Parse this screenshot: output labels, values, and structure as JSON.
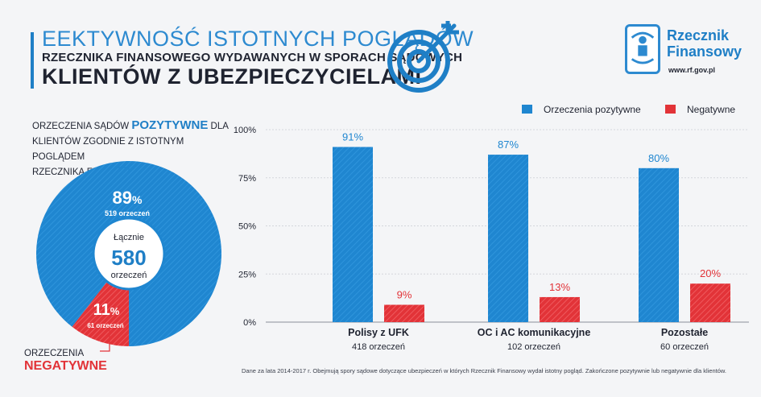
{
  "header": {
    "title_line1": "EEKTYWNOŚĆ ISTOTNYCH POGLĄDÓW",
    "title_line2": "RZECZNIKA FINANSOWEGO WYDAWANYCH W SPORACH SĄDOWYCH",
    "title_line3": "KLIENTÓW Z UBEZPIECZYCIELAMI"
  },
  "logo": {
    "name_line1": "Rzecznik",
    "name_line2": "Finansowy",
    "url": "www.rf.gov.pl",
    "icon": "ombudsman-logo-icon"
  },
  "donut": {
    "caption_line1_pre": "ORZECZENIA SĄDÓW ",
    "caption_highlight": "POZYTYWNE",
    "caption_line1_post": " DLA",
    "caption_line2": "KLIENTÓW ZGODNIE Z ISTOTNYM POGLĄDEM",
    "caption_line3": "RZECZNIKA FINANSOWEGO",
    "total_label": "Łącznie",
    "total_value": "580",
    "total_unit": "orzeczeń",
    "positive_pct": "89",
    "positive_pct_sign": "%",
    "positive_count": "519 orzeczeń",
    "negative_pct": "11",
    "negative_pct_sign": "%",
    "negative_count": "61 orzeczeń",
    "neg_caption_line1": "ORZECZENIA",
    "neg_caption_highlight": "NEGATYWNE",
    "positive_fraction": 0.895
  },
  "colors": {
    "positive": "#1f86d0",
    "negative": "#e23338",
    "title_blue": "#2d8ad0"
  },
  "chart_data": {
    "type": "bar",
    "categories": [
      "Polisy z UFK",
      "OC i AC komunikacyjne",
      "Pozostałe"
    ],
    "category_counts": [
      "418 orzeczeń",
      "102 orzeczeń",
      "60 orzeczeń"
    ],
    "series": [
      {
        "name": "Orzeczenia pozytywne",
        "values": [
          91,
          87,
          80
        ],
        "labels": [
          "91%",
          "87%",
          "80%"
        ]
      },
      {
        "name": "Negatywne",
        "values": [
          9,
          13,
          20
        ],
        "labels": [
          "9%",
          "13%",
          "20%"
        ]
      }
    ],
    "yticks": [
      "100%",
      "75%",
      "50%",
      "25%",
      "0%"
    ],
    "ylim": [
      0,
      100
    ],
    "legend_position": "top-right",
    "grid": true
  },
  "footnote": "Dane za lata 2014-2017 r. Obejmują spory sądowe dotyczące ubezpieczeń w których Rzecznik Finansowy wydał istotny pogląd. Zakończone pozytywnie lub negatywnie dla klientów."
}
